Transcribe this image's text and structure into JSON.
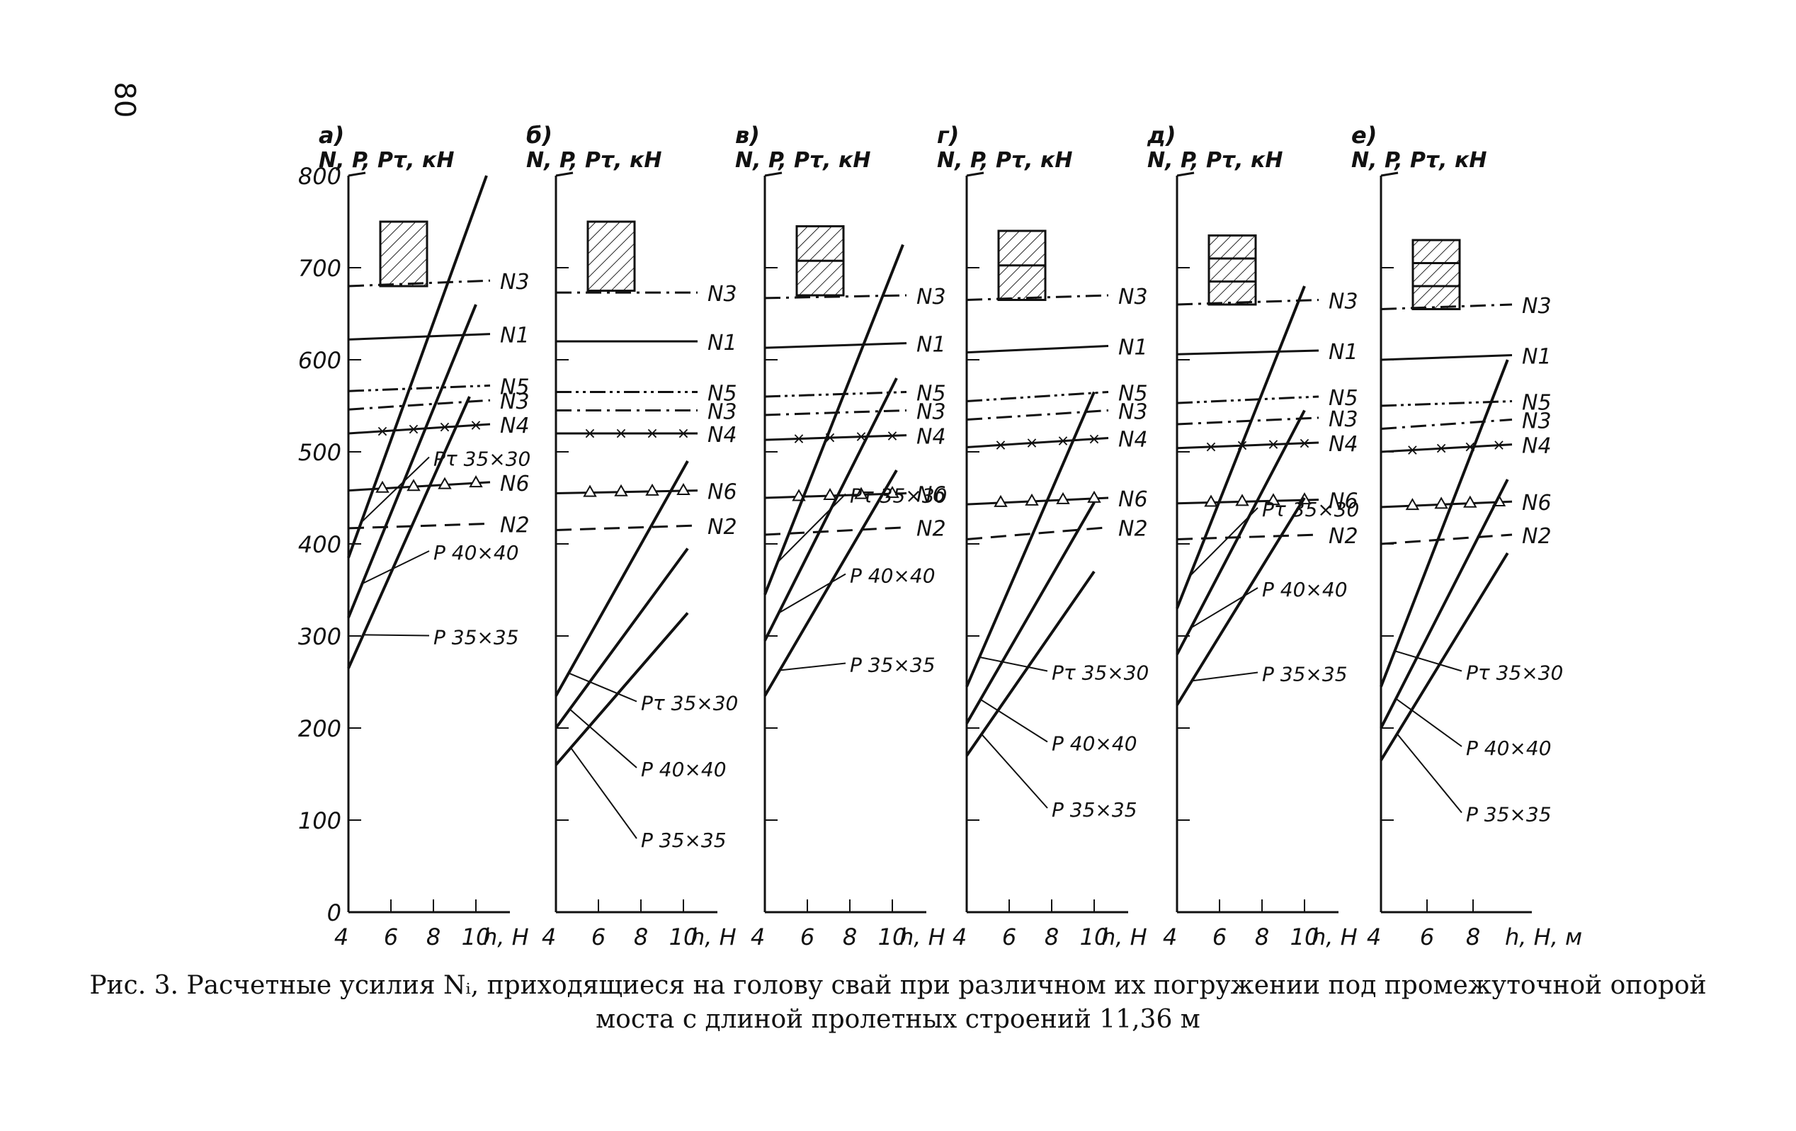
{
  "page_number": "80",
  "caption": {
    "line1": "Рис. 3. Расчетные усилия Nᵢ, приходящиеся на голову свай при различном их погружении под промежуточной опорой",
    "line2": "моста с длиной пролетных строений 11,36 м"
  },
  "chart_data": [
    {
      "panel": "а)",
      "type": "line",
      "ylabel": "N, P, Pτ, кН",
      "xlabel": "h, H",
      "xlim": [
        4,
        11
      ],
      "ylim": [
        0,
        800
      ],
      "yticks": [
        "0",
        "100",
        "200",
        "300",
        "400",
        "500",
        "600",
        "700",
        "800"
      ],
      "xticks": [
        "4",
        "6",
        "8",
        "10"
      ],
      "box": {
        "y": [
          680,
          750
        ],
        "parts": 1
      },
      "horizontal": [
        {
          "name": "N3",
          "y": [
            680,
            686
          ],
          "style": "dashdot"
        },
        {
          "name": "N1",
          "y": [
            622,
            628
          ],
          "style": "solid"
        },
        {
          "name": "N5",
          "y": [
            566,
            572
          ],
          "style": "dashdotdot"
        },
        {
          "name": "N3",
          "y": [
            546,
            556
          ],
          "style": "dashdot"
        },
        {
          "name": "N4",
          "y": [
            520,
            530
          ],
          "style": "cross"
        },
        {
          "name": "N6",
          "y": [
            458,
            467
          ],
          "style": "triangle"
        },
        {
          "name": "N2",
          "y": [
            417,
            422
          ],
          "style": "dashed"
        }
      ],
      "rising": [
        {
          "name": "Pτ 35×30",
          "x": [
            4,
            10.5
          ],
          "y": [
            385,
            800
          ]
        },
        {
          "name": "P 40×40",
          "x": [
            4,
            10
          ],
          "y": [
            320,
            660
          ]
        },
        {
          "name": "P 35×35",
          "x": [
            4,
            9.7
          ],
          "y": [
            265,
            560
          ]
        }
      ]
    },
    {
      "panel": "б)",
      "type": "line",
      "ylabel": "N, P, Pτ, кН",
      "xlabel": "h, H",
      "xlim": [
        4,
        11
      ],
      "ylim": [
        0,
        800
      ],
      "yticks": [],
      "xticks": [
        "4",
        "6",
        "8",
        "10"
      ],
      "box": {
        "y": [
          675,
          750
        ],
        "parts": 1
      },
      "horizontal": [
        {
          "name": "N3",
          "y": [
            673,
            673
          ],
          "style": "dashdot"
        },
        {
          "name": "N1",
          "y": [
            620,
            620
          ],
          "style": "solid"
        },
        {
          "name": "N5",
          "y": [
            565,
            565
          ],
          "style": "dashdotdot"
        },
        {
          "name": "N3",
          "y": [
            545,
            545
          ],
          "style": "dashdot"
        },
        {
          "name": "N4",
          "y": [
            520,
            520
          ],
          "style": "cross"
        },
        {
          "name": "N6",
          "y": [
            455,
            458
          ],
          "style": "triangle"
        },
        {
          "name": "N2",
          "y": [
            415,
            420
          ],
          "style": "dashed"
        }
      ],
      "rising": [
        {
          "name": "Pτ 35×30",
          "x": [
            4,
            10.2
          ],
          "y": [
            235,
            490
          ]
        },
        {
          "name": "P 40×40",
          "x": [
            4,
            10.2
          ],
          "y": [
            200,
            395
          ]
        },
        {
          "name": "P 35×35",
          "x": [
            4,
            10.2
          ],
          "y": [
            160,
            325
          ]
        }
      ]
    },
    {
      "panel": "в)",
      "type": "line",
      "ylabel": "N, P, Pτ, кН",
      "xlabel": "h, H",
      "xlim": [
        4,
        11
      ],
      "ylim": [
        0,
        800
      ],
      "yticks": [],
      "xticks": [
        "4",
        "6",
        "8",
        "10"
      ],
      "box": {
        "y": [
          670,
          745
        ],
        "parts": 2
      },
      "horizontal": [
        {
          "name": "N3",
          "y": [
            667,
            670
          ],
          "style": "dashdot"
        },
        {
          "name": "N1",
          "y": [
            613,
            618
          ],
          "style": "solid"
        },
        {
          "name": "N5",
          "y": [
            560,
            565
          ],
          "style": "dashdotdot"
        },
        {
          "name": "N3",
          "y": [
            540,
            545
          ],
          "style": "dashdot"
        },
        {
          "name": "N4",
          "y": [
            513,
            518
          ],
          "style": "cross"
        },
        {
          "name": "N6",
          "y": [
            450,
            455
          ],
          "style": "triangle"
        },
        {
          "name": "N2",
          "y": [
            410,
            418
          ],
          "style": "dashed"
        }
      ],
      "rising": [
        {
          "name": "Pτ 35×30",
          "x": [
            4,
            10.5
          ],
          "y": [
            345,
            725
          ]
        },
        {
          "name": "P 40×40",
          "x": [
            4,
            10.2
          ],
          "y": [
            295,
            580
          ]
        },
        {
          "name": "P 35×35",
          "x": [
            4,
            10.2
          ],
          "y": [
            235,
            480
          ]
        }
      ]
    },
    {
      "panel": "г)",
      "type": "line",
      "ylabel": "N, P, Pτ, кН",
      "xlabel": "h, H",
      "xlim": [
        4,
        11
      ],
      "ylim": [
        0,
        800
      ],
      "yticks": [],
      "xticks": [
        "4",
        "6",
        "8",
        "10"
      ],
      "box": {
        "y": [
          665,
          740
        ],
        "parts": 2
      },
      "horizontal": [
        {
          "name": "N3",
          "y": [
            665,
            670
          ],
          "style": "dashdot"
        },
        {
          "name": "N1",
          "y": [
            608,
            615
          ],
          "style": "solid"
        },
        {
          "name": "N5",
          "y": [
            555,
            565
          ],
          "style": "dashdotdot"
        },
        {
          "name": "N3",
          "y": [
            535,
            545
          ],
          "style": "dashdot"
        },
        {
          "name": "N4",
          "y": [
            505,
            515
          ],
          "style": "cross"
        },
        {
          "name": "N6",
          "y": [
            443,
            450
          ],
          "style": "triangle"
        },
        {
          "name": "N2",
          "y": [
            405,
            418
          ],
          "style": "dashed"
        }
      ],
      "rising": [
        {
          "name": "Pτ 35×30",
          "x": [
            4,
            10
          ],
          "y": [
            245,
            565
          ]
        },
        {
          "name": "P 40×40",
          "x": [
            4,
            10
          ],
          "y": [
            205,
            445
          ]
        },
        {
          "name": "P 35×35",
          "x": [
            4,
            10
          ],
          "y": [
            170,
            370
          ]
        }
      ]
    },
    {
      "panel": "д)",
      "type": "line",
      "ylabel": "N, P, Pτ, кН",
      "xlabel": "h, H",
      "xlim": [
        4,
        11
      ],
      "ylim": [
        0,
        800
      ],
      "yticks": [],
      "xticks": [
        "4",
        "6",
        "8",
        "10"
      ],
      "box": {
        "y": [
          660,
          735
        ],
        "parts": 3
      },
      "horizontal": [
        {
          "name": "N3",
          "y": [
            660,
            665
          ],
          "style": "dashdot"
        },
        {
          "name": "N1",
          "y": [
            606,
            610
          ],
          "style": "solid"
        },
        {
          "name": "N5",
          "y": [
            553,
            560
          ],
          "style": "dashdotdot"
        },
        {
          "name": "N3",
          "y": [
            530,
            537
          ],
          "style": "dashdot"
        },
        {
          "name": "N4",
          "y": [
            504,
            510
          ],
          "style": "cross"
        },
        {
          "name": "N6",
          "y": [
            444,
            448
          ],
          "style": "triangle"
        },
        {
          "name": "N2",
          "y": [
            405,
            410
          ],
          "style": "dashed"
        }
      ],
      "rising": [
        {
          "name": "Pτ 35×30",
          "x": [
            4,
            10
          ],
          "y": [
            330,
            680
          ]
        },
        {
          "name": "P 40×40",
          "x": [
            4,
            10
          ],
          "y": [
            280,
            545
          ]
        },
        {
          "name": "P 35×35",
          "x": [
            4,
            10
          ],
          "y": [
            225,
            450
          ]
        }
      ]
    },
    {
      "panel": "е)",
      "type": "line",
      "ylabel": "N, P, Pτ, кН",
      "xlabel": "h, H, м",
      "xlim": [
        4,
        10
      ],
      "ylim": [
        0,
        800
      ],
      "yticks": [],
      "xticks": [
        "4",
        "6",
        "8"
      ],
      "box": {
        "y": [
          655,
          730
        ],
        "parts": 3
      },
      "horizontal": [
        {
          "name": "N3",
          "y": [
            655,
            660
          ],
          "style": "dashdot"
        },
        {
          "name": "N1",
          "y": [
            600,
            605
          ],
          "style": "solid"
        },
        {
          "name": "N5",
          "y": [
            550,
            555
          ],
          "style": "dashdotdot"
        },
        {
          "name": "N3",
          "y": [
            525,
            535
          ],
          "style": "dashdot"
        },
        {
          "name": "N4",
          "y": [
            500,
            508
          ],
          "style": "cross"
        },
        {
          "name": "N6",
          "y": [
            440,
            446
          ],
          "style": "triangle"
        },
        {
          "name": "N2",
          "y": [
            400,
            410
          ],
          "style": "dashed"
        }
      ],
      "rising": [
        {
          "name": "Pτ 35×30",
          "x": [
            4,
            9.5
          ],
          "y": [
            245,
            600
          ]
        },
        {
          "name": "P 40×40",
          "x": [
            4,
            9.5
          ],
          "y": [
            200,
            470
          ]
        },
        {
          "name": "P 35×35",
          "x": [
            4,
            9.5
          ],
          "y": [
            165,
            390
          ]
        }
      ]
    }
  ]
}
